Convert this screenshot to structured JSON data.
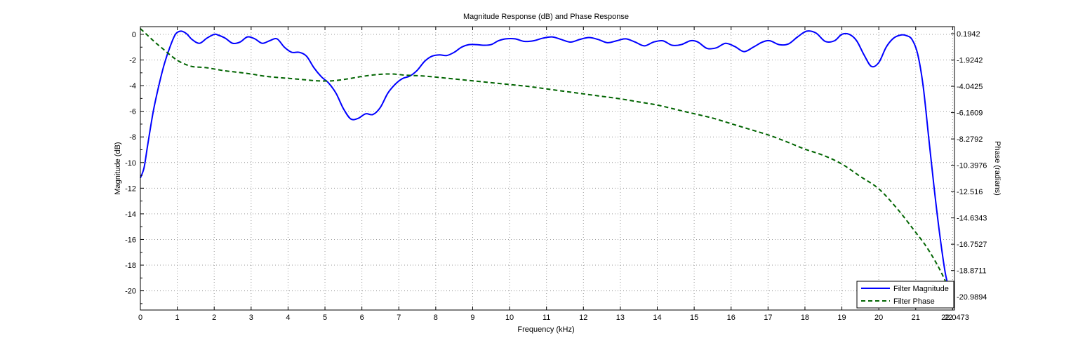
{
  "chart_data": {
    "type": "line",
    "title": "Magnitude Response (dB) and Phase Response",
    "xlabel": "Frequency (kHz)",
    "ylabel_left": "Magnitude (dB)",
    "ylabel_right": "Phase (radians)",
    "xlim": [
      0,
      22.05
    ],
    "ylim_left": [
      -21.5,
      0.6
    ],
    "ylim_right": [
      -22.05,
      0.76
    ],
    "x_ticks": [
      0,
      1,
      2,
      3,
      4,
      5,
      6,
      7,
      8,
      9,
      10,
      11,
      12,
      13,
      14,
      15,
      16,
      17,
      18,
      19,
      20,
      21,
      22
    ],
    "x_tick_labels": [
      "0",
      "1",
      "2",
      "3",
      "4",
      "5",
      "6",
      "7",
      "8",
      "9",
      "10",
      "11",
      "12",
      "13",
      "14",
      "15",
      "16",
      "17",
      "18",
      "19",
      "20",
      "21",
      "22"
    ],
    "x_extra_tick": {
      "value": 22.05,
      "label": "22.0473"
    },
    "y_left_ticks": [
      0,
      -2,
      -4,
      -6,
      -8,
      -10,
      -12,
      -14,
      -16,
      -18,
      -20
    ],
    "y_left_tick_labels": [
      "0",
      "-2",
      "-4",
      "-6",
      "-8",
      "-10",
      "-12",
      "-14",
      "-16",
      "-18",
      "-20"
    ],
    "y_right_ticks": [
      0.1942,
      -1.9242,
      -4.0425,
      -6.1609,
      -8.2792,
      -10.3976,
      -12.516,
      -14.6343,
      -16.7527,
      -18.8711,
      -20.9894
    ],
    "y_right_tick_labels": [
      "0.1942",
      "-1.9242",
      "-4.0425",
      "-6.1609",
      "-8.2792",
      "-10.3976",
      "-12.516",
      "-14.6343",
      "-16.7527",
      "-18.8711",
      "-20.9894"
    ],
    "grid": true,
    "legend_position": "bottom-right",
    "series": [
      {
        "name": "Filter Magnitude",
        "axis": "left",
        "color": "#0000ff",
        "style": "solid",
        "x": [
          0,
          0.1,
          0.2,
          0.35,
          0.5,
          0.65,
          0.8,
          0.95,
          1.1,
          1.25,
          1.4,
          1.6,
          1.8,
          2.0,
          2.1,
          2.3,
          2.5,
          2.7,
          2.9,
          3.1,
          3.3,
          3.5,
          3.7,
          3.9,
          4.1,
          4.3,
          4.5,
          4.7,
          4.9,
          5.1,
          5.3,
          5.5,
          5.7,
          5.9,
          6.1,
          6.3,
          6.5,
          6.7,
          6.9,
          7.1,
          7.3,
          7.5,
          7.7,
          7.9,
          8.1,
          8.3,
          8.5,
          8.7,
          8.9,
          9.1,
          9.3,
          9.5,
          9.7,
          9.9,
          10.15,
          10.4,
          10.65,
          10.9,
          11.15,
          11.4,
          11.65,
          11.9,
          12.15,
          12.4,
          12.65,
          12.9,
          13.15,
          13.4,
          13.65,
          13.9,
          14.15,
          14.4,
          14.65,
          14.9,
          15.1,
          15.35,
          15.6,
          15.85,
          16.1,
          16.35,
          16.6,
          16.85,
          17.05,
          17.3,
          17.55,
          17.8,
          18.05,
          18.3,
          18.55,
          18.8,
          19.0,
          19.2,
          19.4,
          19.6,
          19.8,
          20.0,
          20.2,
          20.4,
          20.6,
          20.75,
          20.9,
          21.05,
          21.2,
          21.35,
          21.5,
          21.65,
          21.8,
          21.9,
          22.0,
          22.05
        ],
        "values": [
          -11.2,
          -10.4,
          -8.6,
          -6.0,
          -4.0,
          -2.3,
          -1.0,
          0.0,
          0.25,
          0.05,
          -0.4,
          -0.7,
          -0.3,
          0.0,
          -0.05,
          -0.3,
          -0.7,
          -0.6,
          -0.2,
          -0.35,
          -0.7,
          -0.5,
          -0.35,
          -1.0,
          -1.4,
          -1.4,
          -1.7,
          -2.6,
          -3.3,
          -3.8,
          -4.6,
          -5.8,
          -6.6,
          -6.55,
          -6.2,
          -6.25,
          -5.7,
          -4.6,
          -3.9,
          -3.45,
          -3.25,
          -2.8,
          -2.1,
          -1.7,
          -1.6,
          -1.65,
          -1.4,
          -1.0,
          -0.8,
          -0.8,
          -0.85,
          -0.8,
          -0.5,
          -0.35,
          -0.35,
          -0.55,
          -0.5,
          -0.3,
          -0.2,
          -0.4,
          -0.6,
          -0.4,
          -0.25,
          -0.4,
          -0.65,
          -0.5,
          -0.35,
          -0.6,
          -0.9,
          -0.6,
          -0.5,
          -0.85,
          -0.8,
          -0.5,
          -0.6,
          -1.1,
          -1.05,
          -0.7,
          -0.95,
          -1.35,
          -1.0,
          -0.6,
          -0.5,
          -0.8,
          -0.75,
          -0.2,
          0.25,
          0.1,
          -0.55,
          -0.5,
          0.0,
          0.0,
          -0.5,
          -1.6,
          -2.5,
          -2.2,
          -1.0,
          -0.3,
          -0.05,
          -0.1,
          -0.4,
          -1.5,
          -4.0,
          -8.0,
          -12.0,
          -15.6,
          -18.6,
          -19.7,
          -20.1,
          -20.0
        ]
      },
      {
        "name": "Filter Phase",
        "axis": "right",
        "color": "#006400",
        "style": "dashed",
        "x": [
          0,
          0.2,
          0.4,
          0.6,
          0.8,
          1.0,
          1.2,
          1.4,
          1.6,
          1.8,
          2.0,
          2.3,
          2.6,
          3.0,
          3.3,
          3.6,
          4.0,
          4.4,
          4.8,
          5.2,
          5.6,
          6.0,
          6.4,
          6.8,
          7.2,
          7.6,
          8.0,
          8.5,
          9.0,
          9.5,
          10.0,
          10.5,
          11.0,
          11.5,
          12.0,
          12.5,
          13.0,
          13.5,
          14.0,
          14.5,
          15.0,
          15.5,
          16.0,
          16.5,
          17.0,
          17.5,
          18.0,
          18.5,
          19.0,
          19.5,
          20.0,
          20.5,
          21.0,
          21.3,
          21.6,
          21.8,
          21.95,
          22.05
        ],
        "values": [
          0.6,
          0.05,
          -0.5,
          -1.0,
          -1.5,
          -1.95,
          -2.25,
          -2.45,
          -2.5,
          -2.55,
          -2.65,
          -2.8,
          -2.9,
          -3.05,
          -3.2,
          -3.3,
          -3.4,
          -3.5,
          -3.6,
          -3.6,
          -3.45,
          -3.25,
          -3.1,
          -3.05,
          -3.15,
          -3.2,
          -3.3,
          -3.45,
          -3.6,
          -3.75,
          -3.9,
          -4.05,
          -4.25,
          -4.45,
          -4.65,
          -4.85,
          -5.05,
          -5.3,
          -5.55,
          -5.9,
          -6.25,
          -6.6,
          -7.05,
          -7.5,
          -7.95,
          -8.5,
          -9.1,
          -9.6,
          -10.3,
          -11.3,
          -12.3,
          -13.9,
          -15.8,
          -17.0,
          -18.5,
          -19.7,
          -20.7,
          -21.6
        ]
      }
    ]
  }
}
